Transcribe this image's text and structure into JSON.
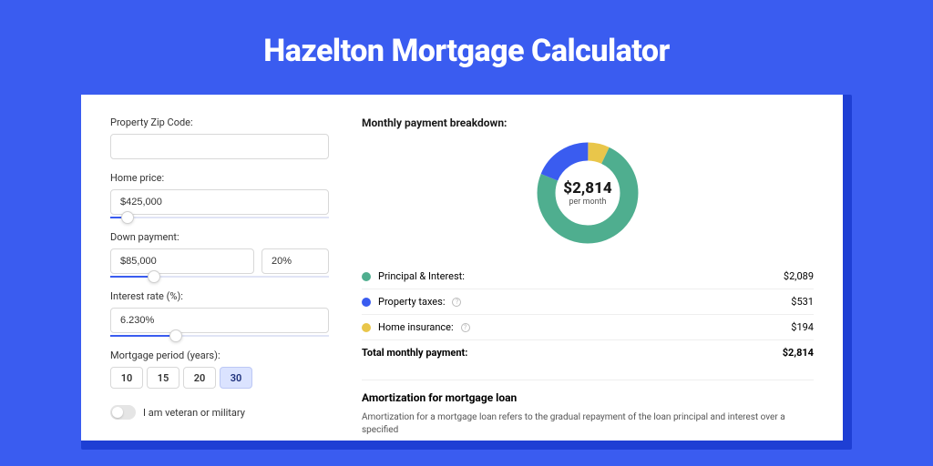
{
  "header": {
    "title": "Hazelton Mortgage Calculator"
  },
  "colors": {
    "page_bg": "#3a5cf0",
    "shadow_bg": "#1e3fd4",
    "card_bg": "#ffffff",
    "slider_track": "#e0e4f5",
    "slider_fill": "#3a5cf0",
    "border": "#d8d8d8",
    "row_border": "#eeeeee",
    "text": "#333333",
    "heading": "#1a1a1a"
  },
  "form": {
    "zip": {
      "label": "Property Zip Code:",
      "value": ""
    },
    "home_price": {
      "label": "Home price:",
      "value": "$425,000",
      "slider_pct": 8
    },
    "down_payment": {
      "label": "Down payment:",
      "amount": "$85,000",
      "percent": "20%",
      "slider_pct": 20
    },
    "interest_rate": {
      "label": "Interest rate (%):",
      "value": "6.230%",
      "slider_pct": 30
    },
    "period": {
      "label": "Mortgage period (years):",
      "options": [
        "10",
        "15",
        "20",
        "30"
      ],
      "selected": "30"
    },
    "veteran": {
      "label": "I am veteran or military",
      "checked": false
    }
  },
  "breakdown": {
    "title": "Monthly payment breakdown:",
    "donut": {
      "value": "$2,814",
      "sub": "per month",
      "segments": [
        {
          "key": "home_insurance",
          "label": "Home insurance:",
          "value": "$194",
          "pct": 6.9,
          "color": "#e9c64a"
        },
        {
          "key": "principal_interest",
          "label": "Principal & Interest:",
          "value": "$2,089",
          "pct": 74.2,
          "color": "#4fae8f"
        },
        {
          "key": "property_taxes",
          "label": "Property taxes:",
          "value": "$531",
          "pct": 18.9,
          "color": "#3a5cf0"
        }
      ]
    },
    "rows": [
      {
        "label": "Principal & Interest:",
        "value": "$2,089",
        "color": "#4fae8f",
        "has_info": false
      },
      {
        "label": "Property taxes:",
        "value": "$531",
        "color": "#3a5cf0",
        "has_info": true
      },
      {
        "label": "Home insurance:",
        "value": "$194",
        "color": "#e9c64a",
        "has_info": true
      }
    ],
    "total": {
      "label": "Total monthly payment:",
      "value": "$2,814"
    }
  },
  "amortization": {
    "title": "Amortization for mortgage loan",
    "text": "Amortization for a mortgage loan refers to the gradual repayment of the loan principal and interest over a specified"
  }
}
